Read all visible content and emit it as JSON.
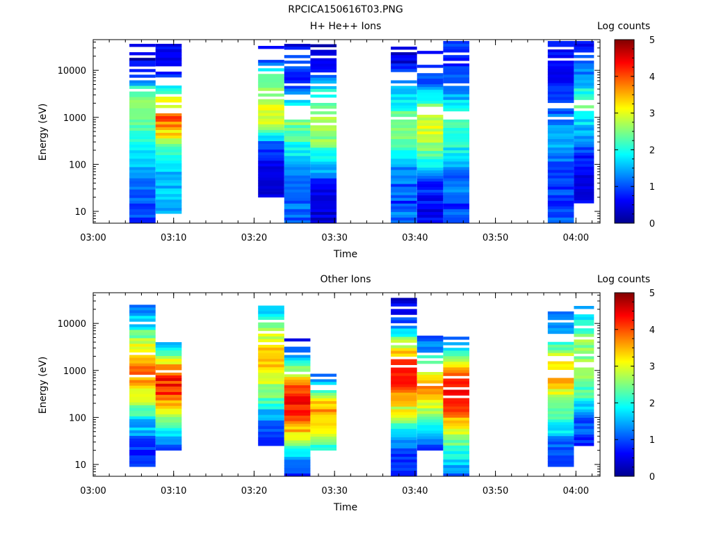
{
  "title": "RPCICA150616T03.PNG",
  "colors": {
    "colormap": [
      "#00008f",
      "#0000ff",
      "#0080ff",
      "#00ffff",
      "#80ff80",
      "#ffff00",
      "#ff8000",
      "#ff0000",
      "#800000"
    ]
  },
  "chart_data": [
    {
      "type": "heatmap",
      "title": "H+ He++ Ions",
      "xlabel": "Time",
      "ylabel": "Energy (eV)",
      "ylog": true,
      "ylim": [
        5.6,
        45000
      ],
      "xlim": [
        "03:00",
        "04:03"
      ],
      "xticks": [
        "03:00",
        "03:10",
        "03:20",
        "03:30",
        "03:40",
        "03:50",
        "04:00"
      ],
      "yticks": [
        "10",
        "100",
        "1000",
        "10000"
      ],
      "colorbar": {
        "label": "Log counts",
        "range": [
          0,
          5
        ],
        "ticks": [
          "0",
          "1",
          "2",
          "3",
          "4",
          "5"
        ]
      },
      "columns": [
        {
          "t0": "03:04:30",
          "t1": "03:07:45",
          "emin": 5.6,
          "emax": 42000,
          "levels": [
            [
              0.6,
              1.2
            ],
            [
              0.8,
              1.5
            ],
            [
              1.0,
              1.6
            ],
            [
              1.4,
              1.8
            ],
            [
              1.8,
              2.2
            ],
            [
              2.2,
              2.5
            ],
            [
              2.6,
              2.7
            ],
            [
              1.2,
              2.0
            ],
            [
              0,
              0.8
            ],
            [
              0.4,
              0.9
            ]
          ]
        },
        {
          "t0": "03:07:45",
          "t1": "03:11:00",
          "emin": 9,
          "emax": 42000,
          "levels": [
            [
              0.8,
              1.6
            ],
            [
              1.2,
              1.9
            ],
            [
              1.3,
              1.8
            ],
            [
              1.6,
              2.1
            ],
            [
              2.6,
              3.5
            ],
            [
              3.4,
              4.2
            ],
            [
              2.4,
              3.2
            ],
            [
              0.7,
              1.1
            ],
            [
              0.2,
              0.6
            ],
            [
              0.5,
              0.9
            ]
          ]
        },
        {
          "t0": "03:20:30",
          "t1": "03:23:45",
          "emin": 20,
          "emax": 38000,
          "levels": [
            [
              0.2,
              0.6
            ],
            [
              0.2,
              0.6
            ],
            [
              0.4,
              0.8
            ],
            [
              0.6,
              1.1
            ],
            [
              2.4,
              2.9
            ],
            [
              2.8,
              3.3
            ],
            [
              2.4,
              2.9
            ],
            [
              2.2,
              2.6
            ],
            [
              0.6,
              1.2
            ],
            [
              0.2,
              0.6
            ]
          ]
        },
        {
          "t0": "03:23:45",
          "t1": "03:27:00",
          "emin": 5.6,
          "emax": 42000,
          "levels": [
            [
              0.8,
              1.4
            ],
            [
              0.8,
              1.4
            ],
            [
              1.0,
              1.6
            ],
            [
              1.2,
              1.8
            ],
            [
              1.8,
              2.4
            ],
            [
              2.2,
              2.8
            ],
            [
              1.2,
              1.8
            ],
            [
              0.5,
              1.0
            ],
            [
              0.5,
              1.2
            ],
            [
              0.2,
              0.6
            ]
          ]
        },
        {
          "t0": "03:27:00",
          "t1": "03:30:15",
          "emin": 5.6,
          "emax": 36000,
          "levels": [
            [
              0.2,
              0.7
            ],
            [
              0.2,
              0.7
            ],
            [
              0.4,
              0.9
            ],
            [
              1.5,
              2.2
            ],
            [
              2.2,
              2.7
            ],
            [
              2.6,
              3.2
            ],
            [
              2.0,
              2.6
            ],
            [
              1.4,
              2.0
            ],
            [
              0.3,
              0.7
            ],
            [
              0.1,
              0.3
            ]
          ]
        },
        {
          "t0": "03:37:00",
          "t1": "03:40:15",
          "emin": 5.6,
          "emax": 42000,
          "levels": [
            [
              1.0,
              1.5
            ],
            [
              0.6,
              1.4
            ],
            [
              0.8,
              1.5
            ],
            [
              1.2,
              1.8
            ],
            [
              2.2,
              2.8
            ],
            [
              2.4,
              3.0
            ],
            [
              1.6,
              2.2
            ],
            [
              1.0,
              1.6
            ],
            [
              0.2,
              0.9
            ],
            [
              0.0,
              0.6
            ]
          ]
        },
        {
          "t0": "03:40:15",
          "t1": "03:43:30",
          "emin": 5.6,
          "emax": 34000,
          "levels": [
            [
              0.2,
              0.8
            ],
            [
              0.3,
              0.9
            ],
            [
              0.5,
              1.2
            ],
            [
              1.5,
              2.2
            ],
            [
              2.4,
              3.0
            ],
            [
              2.8,
              3.4
            ],
            [
              2.0,
              2.6
            ],
            [
              0.8,
              1.4
            ],
            [
              0.3,
              0.8
            ],
            [
              0.0,
              0.5
            ]
          ]
        },
        {
          "t0": "03:43:30",
          "t1": "03:46:45",
          "emin": 5.6,
          "emax": 42000,
          "levels": [
            [
              0.8,
              1.3
            ],
            [
              0.6,
              1.3
            ],
            [
              0.8,
              1.5
            ],
            [
              1.2,
              1.8
            ],
            [
              1.8,
              2.4
            ],
            [
              2.0,
              2.5
            ],
            [
              1.4,
              2.0
            ],
            [
              0.9,
              1.4
            ],
            [
              0.6,
              1.0
            ],
            [
              0.8,
              1.1
            ]
          ]
        },
        {
          "t0": "03:56:30",
          "t1": "03:59:45",
          "emin": 5.6,
          "emax": 42000,
          "levels": [
            [
              0.8,
              1.3
            ],
            [
              0.6,
              1.2
            ],
            [
              0.6,
              1.3
            ],
            [
              0.8,
              1.4
            ],
            [
              1.2,
              1.8
            ],
            [
              1.0,
              1.6
            ],
            [
              0.6,
              1.1
            ],
            [
              0.5,
              0.9
            ],
            [
              0.3,
              0.7
            ],
            [
              0.6,
              1.0
            ]
          ]
        },
        {
          "t0": "03:59:45",
          "t1": "04:02:15",
          "emin": 15,
          "emax": 42000,
          "levels": [
            [
              0.2,
              0.7
            ],
            [
              0.2,
              0.7
            ],
            [
              0.3,
              0.9
            ],
            [
              0.8,
              1.4
            ],
            [
              1.4,
              2.0
            ],
            [
              2.2,
              2.8
            ],
            [
              1.2,
              1.8
            ],
            [
              0.8,
              1.2
            ],
            [
              0.4,
              0.8
            ]
          ]
        }
      ]
    },
    {
      "type": "heatmap",
      "title": "Other Ions",
      "xlabel": "Time",
      "ylabel": "Energy (eV)",
      "ylog": true,
      "ylim": [
        5.6,
        45000
      ],
      "xlim": [
        "03:00",
        "04:03"
      ],
      "xticks": [
        "03:00",
        "03:10",
        "03:20",
        "03:30",
        "03:40",
        "03:50",
        "04:00"
      ],
      "yticks": [
        "10",
        "100",
        "1000",
        "10000"
      ],
      "colorbar": {
        "label": "Log counts",
        "range": [
          0,
          5
        ],
        "ticks": [
          "0",
          "1",
          "2",
          "3",
          "4",
          "5"
        ]
      },
      "columns": [
        {
          "t0": "03:04:30",
          "t1": "03:07:45",
          "emin": 9,
          "emax": 25000,
          "levels": [
            [
              0.6,
              1.0
            ],
            [
              0.6,
              1.2
            ],
            [
              1.4,
              2.2
            ],
            [
              2.6,
              3.2
            ],
            [
              3.4,
              4.2
            ],
            [
              3.0,
              3.8
            ],
            [
              1.6,
              2.4
            ],
            [
              0.9,
              1.2
            ]
          ]
        },
        {
          "t0": "03:07:45",
          "t1": "03:11:00",
          "emin": 20,
          "emax": 4000,
          "levels": [
            [
              0.8,
              1.3
            ],
            [
              1.4,
              2.0
            ],
            [
              2.4,
              3.0
            ],
            [
              3.6,
              4.4
            ],
            [
              3.8,
              4.6
            ],
            [
              2.6,
              3.4
            ],
            [
              1.0,
              1.5
            ]
          ]
        },
        {
          "t0": "03:20:30",
          "t1": "03:23:45",
          "emin": 25,
          "emax": 24000,
          "levels": [
            [
              0.6,
              1.0
            ],
            [
              0.8,
              1.4
            ],
            [
              2.0,
              2.6
            ],
            [
              2.8,
              3.4
            ],
            [
              3.2,
              3.8
            ],
            [
              2.4,
              3.0
            ],
            [
              1.2,
              1.8
            ]
          ]
        },
        {
          "t0": "03:23:45",
          "t1": "03:27:00",
          "emin": 5.6,
          "emax": 4800,
          "levels": [
            [
              0.6,
              1.0
            ],
            [
              1.2,
              1.8
            ],
            [
              2.8,
              3.4
            ],
            [
              3.8,
              4.4
            ],
            [
              4.2,
              4.8
            ],
            [
              3.0,
              3.6
            ],
            [
              1.4,
              2.0
            ],
            [
              0.1,
              0.5
            ]
          ]
        },
        {
          "t0": "03:27:00",
          "t1": "03:30:15",
          "emin": 20,
          "emax": 850,
          "levels": [
            [
              1.4,
              2.0
            ],
            [
              2.4,
              3.0
            ],
            [
              3.0,
              3.6
            ],
            [
              3.4,
              4.0
            ],
            [
              2.8,
              3.4
            ],
            [
              1.4,
              2.0
            ],
            [
              0.8,
              1.2
            ]
          ]
        },
        {
          "t0": "03:37:00",
          "t1": "03:40:15",
          "emin": 5.6,
          "emax": 35000,
          "levels": [
            [
              0.6,
              1.0
            ],
            [
              0.6,
              1.0
            ],
            [
              1.6,
              2.4
            ],
            [
              2.6,
              3.4
            ],
            [
              3.6,
              4.4
            ],
            [
              4.0,
              4.8
            ],
            [
              2.2,
              3.0
            ],
            [
              0.6,
              1.2
            ],
            [
              0.1,
              0.5
            ]
          ]
        },
        {
          "t0": "03:40:15",
          "t1": "03:43:30",
          "emin": 20,
          "emax": 5500,
          "levels": [
            [
              0.6,
              1.0
            ],
            [
              1.2,
              1.8
            ],
            [
              2.0,
              2.6
            ],
            [
              3.0,
              3.6
            ],
            [
              3.6,
              4.2
            ],
            [
              2.6,
              3.2
            ],
            [
              1.2,
              1.8
            ],
            [
              0.8,
              1.2
            ]
          ]
        },
        {
          "t0": "03:43:30",
          "t1": "03:46:45",
          "emin": 5.6,
          "emax": 6000,
          "levels": [
            [
              0.8,
              1.3
            ],
            [
              1.6,
              2.2
            ],
            [
              2.4,
              3.0
            ],
            [
              3.4,
              4.0
            ],
            [
              4.2,
              4.8
            ],
            [
              3.6,
              4.2
            ],
            [
              2.0,
              2.6
            ],
            [
              0.6,
              1.1
            ]
          ]
        },
        {
          "t0": "03:56:30",
          "t1": "03:59:45",
          "emin": 9,
          "emax": 18000,
          "levels": [
            [
              0.6,
              1.0
            ],
            [
              0.8,
              1.4
            ],
            [
              1.8,
              2.4
            ],
            [
              2.4,
              3.0
            ],
            [
              3.2,
              3.8
            ],
            [
              2.6,
              3.2
            ],
            [
              1.2,
              1.8
            ],
            [
              0.8,
              1.2
            ]
          ]
        },
        {
          "t0": "03:59:45",
          "t1": "04:02:15",
          "emin": 25,
          "emax": 27000,
          "levels": [
            [
              0.6,
              1.0
            ],
            [
              0.8,
              1.4
            ],
            [
              1.8,
              2.4
            ],
            [
              2.2,
              2.8
            ],
            [
              2.4,
              3.0
            ],
            [
              2.0,
              2.6
            ],
            [
              1.0,
              1.6
            ]
          ]
        }
      ]
    }
  ]
}
